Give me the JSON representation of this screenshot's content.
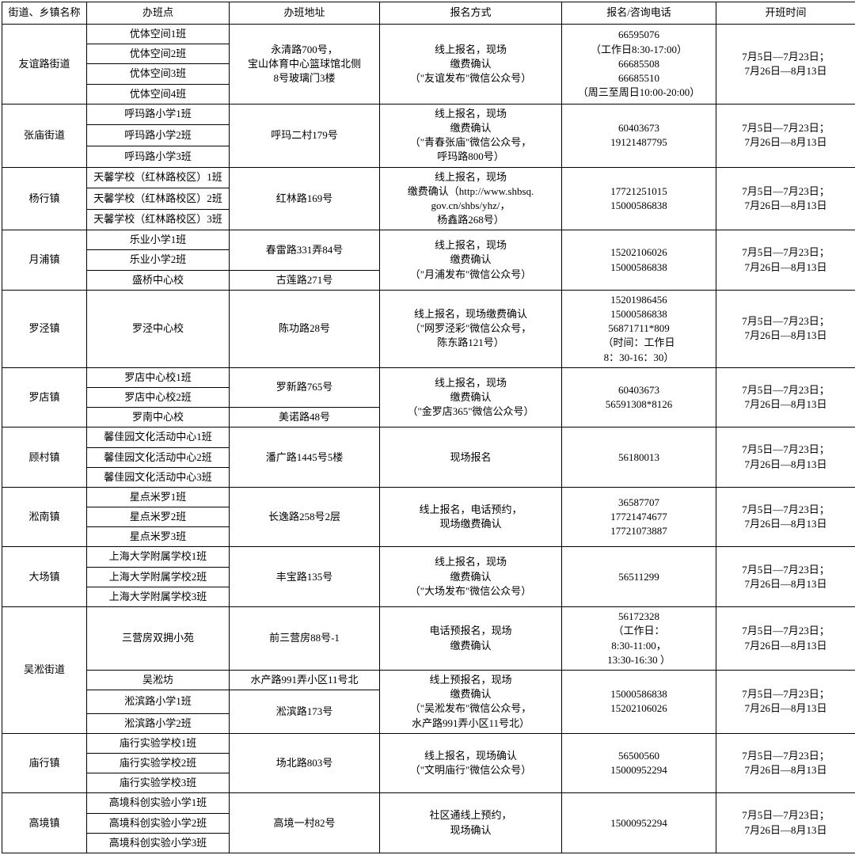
{
  "headers": [
    "街道、乡镇名称",
    "办班点",
    "办班地址",
    "报名方式",
    "报名/咨询电话",
    "开班时间"
  ],
  "sched": "7月5日—7月23日；\n7月26日—8月13日",
  "g1": {
    "name": "友谊路街道",
    "pts": [
      "优体空间1班",
      "优体空间2班",
      "优体空间3班",
      "优体空间4班"
    ],
    "addr": "永清路700号，\n宝山体育中心篮球馆北侧\n8号玻璃门3楼",
    "reg": "线上报名，现场\n缴费确认\n（\"友谊发布\"微信公众号）",
    "tel": "66595076\n（工作日8:30-17:00）\n66685508\n66685510\n（周三至周日10:00-20:00）"
  },
  "g2": {
    "name": "张庙街道",
    "pts": [
      "呼玛路小学1班",
      "呼玛路小学2班",
      "呼玛路小学3班"
    ],
    "addr": "呼玛二村179号",
    "reg": "线上报名，现场\n缴费确认\n（\"青春张庙\"微信公众号，\n呼玛路800号）",
    "tel": "60403673\n19121487795"
  },
  "g3": {
    "name": "杨行镇",
    "pts": [
      "天馨学校（红林路校区）1班",
      "天馨学校（红林路校区）2班",
      "天馨学校（红林路校区）3班"
    ],
    "addr": "红林路169号",
    "reg": "线上报名，现场\n缴费确认（http://www.shbsq.\ngov.cn/shbs/yhz/，\n杨鑫路268号）",
    "tel": "17721251015\n15000586838"
  },
  "g4": {
    "name": "月浦镇",
    "pts": [
      "乐业小学1班",
      "乐业小学2班",
      "盛桥中心校"
    ],
    "addr1": "春雷路331弄84号",
    "addr2": "古莲路271号",
    "reg": "线上报名，现场\n缴费确认\n（\"月浦发布\"微信公众号）",
    "tel": "15202106026\n15000586838"
  },
  "g5": {
    "name": "罗泾镇",
    "pts": [
      "罗泾中心校"
    ],
    "addr": "陈功路28号",
    "reg": "线上报名，现场缴费确认\n（\"网罗泾彩\"微信公众号，\n陈东路121号）",
    "tel": "15201986456\n15000586838\n56871711*809\n（时间：工作日\n8：30-16：30）"
  },
  "g6": {
    "name": "罗店镇",
    "pts": [
      "罗店中心校1班",
      "罗店中心校2班",
      "罗南中心校"
    ],
    "addr1": "罗新路765号",
    "addr2": "美诺路48号",
    "reg": "线上报名，现场\n缴费确认\n（\"金罗店365\"微信公众号）",
    "tel": "60403673\n56591308*8126"
  },
  "g7": {
    "name": "顾村镇",
    "pts": [
      "馨佳园文化活动中心1班",
      "馨佳园文化活动中心2班",
      "馨佳园文化活动中心3班"
    ],
    "addr": "潘广路1445号5楼",
    "reg": "现场报名",
    "tel": "56180013"
  },
  "g8": {
    "name": "淞南镇",
    "pts": [
      "星点米罗1班",
      "星点米罗2班",
      "星点米罗3班"
    ],
    "addr": "长逸路258号2层",
    "reg": "线上报名，电话预约，\n现场缴费确认",
    "tel": "36587707\n17721474677\n17721073887"
  },
  "g9": {
    "name": "大场镇",
    "pts": [
      "上海大学附属学校1班",
      "上海大学附属学校2班",
      "上海大学附属学校3班"
    ],
    "addr": "丰宝路135号",
    "reg": "线上报名，现场\n缴费确认\n（\"大场发布\"微信公众号）",
    "tel": "56511299"
  },
  "g10": {
    "name": "吴淞街道",
    "pts": [
      "三营房双拥小苑",
      "吴淞坊",
      "淞滨路小学1班",
      "淞滨路小学2班"
    ],
    "addr1": "前三营房88号-1",
    "addr2": "水产路991弄小区11号北",
    "addr3": "淞滨路173号",
    "reg1": "电话预报名，现场\n缴费确认",
    "reg2": "线上预报名，现场\n缴费确认\n（\"吴淞发布\"微信公众号，\n水产路991弄小区11号北）",
    "tel1": "56172328\n（工作日：\n8:30-11:00，\n13:30-16:30 ）",
    "tel2": "15000586838\n15202106026"
  },
  "g11": {
    "name": "庙行镇",
    "pts": [
      "庙行实验学校1班",
      "庙行实验学校2班",
      "庙行实验学校3班"
    ],
    "addr": "场北路803号",
    "reg": "线上报名，现场确认\n（\"文明庙行\"微信公众号）",
    "tel": "56500560\n15000952294"
  },
  "g12": {
    "name": "高境镇",
    "pts": [
      "高境科创实验小学1班",
      "高境科创实验小学2班",
      "高境科创实验小学3班"
    ],
    "addr": "高境一村82号",
    "reg": "社区通线上预约，\n现场确认",
    "tel": "15000952294"
  }
}
